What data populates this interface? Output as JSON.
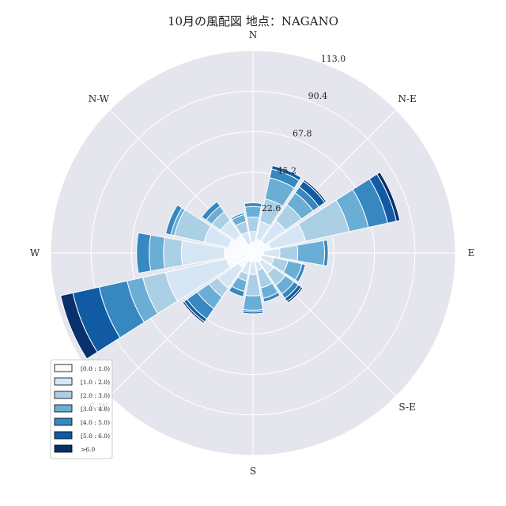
{
  "chart_data": {
    "type": "windrose",
    "title": "10月の風配図 地点：NAGANO",
    "direction_labels": {
      "N": "N",
      "NE": "N-E",
      "E": "E",
      "SE": "S-E",
      "S": "S",
      "SW": "S-W",
      "W": "W",
      "NW": "N-W"
    },
    "radial_ticks": [
      "22.6",
      "45.2",
      "67.8",
      "90.4",
      "113.0"
    ],
    "rmax": 113.0,
    "grid": true,
    "legend_placement": "lower-left",
    "bins": [
      "[0.0 : 1.0)",
      "[1.0 : 2.0)",
      "[2.0 : 3.0)",
      "[3.0 : 4.0)",
      "[4.0 : 5.0)",
      "[5.0 : 6.0)",
      ">6.0"
    ],
    "colors": [
      "#f7fbff",
      "#d6e6f4",
      "#abcfe5",
      "#6aaed6",
      "#3787c0",
      "#105ba4",
      "#08306b"
    ],
    "sectors": [
      "N",
      "NNE",
      "NE",
      "ENE",
      "E",
      "ESE",
      "SE",
      "SSE",
      "S",
      "SSW",
      "SW",
      "WSW",
      "W",
      "WNW",
      "NW",
      "NNW"
    ],
    "cumulative": [
      [
        6,
        12,
        20,
        26,
        28,
        28,
        28
      ],
      [
        8,
        18,
        31,
        43,
        48,
        50,
        50
      ],
      [
        8,
        22,
        33,
        41,
        45,
        49,
        50
      ],
      [
        10,
        30,
        55,
        66,
        77,
        82,
        84
      ],
      [
        6,
        15,
        25,
        40,
        42,
        42,
        42
      ],
      [
        5,
        12,
        20,
        28,
        30,
        30,
        30
      ],
      [
        6,
        14,
        22,
        28,
        31,
        33,
        34
      ],
      [
        5,
        10,
        20,
        26,
        28,
        28,
        28
      ],
      [
        5,
        12,
        24,
        32,
        33,
        34,
        34
      ],
      [
        5,
        12,
        16,
        22,
        25,
        25,
        25
      ],
      [
        10,
        24,
        30,
        38,
        45,
        47,
        48
      ],
      [
        15,
        50,
        63,
        72,
        88,
        103,
        110
      ],
      [
        16,
        40,
        50,
        58,
        65,
        65,
        65
      ],
      [
        14,
        28,
        45,
        47,
        50,
        50,
        50
      ],
      [
        12,
        22,
        28,
        32,
        35,
        35,
        35
      ],
      [
        5,
        12,
        18,
        22,
        23,
        23,
        23
      ]
    ]
  }
}
